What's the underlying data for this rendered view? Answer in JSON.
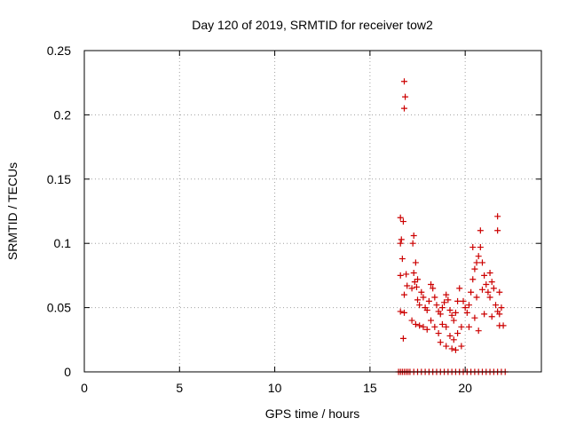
{
  "chart_data": {
    "type": "scatter",
    "title": "Day 120 of 2019, SRMTID for receiver tow2",
    "xlabel": "GPS time / hours",
    "ylabel": "SRMTID / TECUs",
    "xlim": [
      0,
      24
    ],
    "ylim": [
      0,
      0.25
    ],
    "xticks": [
      0,
      5,
      10,
      15,
      20
    ],
    "xtick_labels": [
      "0",
      "5",
      "10",
      "15",
      "20"
    ],
    "yticks": [
      0,
      0.05,
      0.1,
      0.15,
      0.2,
      0.25
    ],
    "ytick_labels": [
      "0",
      "0.05",
      "0.1",
      "0.15",
      "0.2",
      "0.25"
    ],
    "grid": true,
    "marker": "+",
    "series": [
      {
        "name": "SRMTID",
        "color": "#cc0000",
        "points": [
          [
            16.5,
            0
          ],
          [
            16.6,
            0
          ],
          [
            16.7,
            0
          ],
          [
            16.8,
            0
          ],
          [
            16.9,
            0
          ],
          [
            17.0,
            0
          ],
          [
            17.1,
            0
          ],
          [
            17.3,
            0
          ],
          [
            17.5,
            0
          ],
          [
            17.7,
            0
          ],
          [
            17.9,
            0
          ],
          [
            18.1,
            0
          ],
          [
            18.3,
            0
          ],
          [
            18.5,
            0
          ],
          [
            18.7,
            0
          ],
          [
            18.9,
            0
          ],
          [
            19.1,
            0
          ],
          [
            19.3,
            0
          ],
          [
            19.5,
            0
          ],
          [
            19.7,
            0
          ],
          [
            19.9,
            0
          ],
          [
            20.1,
            0
          ],
          [
            20.3,
            0
          ],
          [
            20.5,
            0
          ],
          [
            20.7,
            0
          ],
          [
            20.9,
            0
          ],
          [
            21.1,
            0
          ],
          [
            21.3,
            0
          ],
          [
            21.5,
            0
          ],
          [
            21.7,
            0
          ],
          [
            21.9,
            0
          ],
          [
            22.1,
            0
          ],
          [
            16.8,
            0.226
          ],
          [
            16.85,
            0.214
          ],
          [
            16.8,
            0.205
          ],
          [
            16.6,
            0.12
          ],
          [
            16.75,
            0.117
          ],
          [
            16.65,
            0.103
          ],
          [
            16.6,
            0.1
          ],
          [
            17.3,
            0.106
          ],
          [
            17.25,
            0.1
          ],
          [
            16.7,
            0.088
          ],
          [
            17.4,
            0.085
          ],
          [
            16.9,
            0.076
          ],
          [
            16.6,
            0.075
          ],
          [
            17.3,
            0.077
          ],
          [
            17.5,
            0.072
          ],
          [
            16.95,
            0.067
          ],
          [
            16.8,
            0.06
          ],
          [
            17.2,
            0.065
          ],
          [
            17.35,
            0.07
          ],
          [
            17.45,
            0.066
          ],
          [
            17.5,
            0.056
          ],
          [
            17.6,
            0.052
          ],
          [
            17.7,
            0.062
          ],
          [
            17.8,
            0.058
          ],
          [
            17.9,
            0.05
          ],
          [
            18.0,
            0.048
          ],
          [
            18.1,
            0.055
          ],
          [
            18.2,
            0.068
          ],
          [
            18.3,
            0.065
          ],
          [
            18.4,
            0.058
          ],
          [
            18.5,
            0.052
          ],
          [
            18.6,
            0.047
          ],
          [
            18.7,
            0.045
          ],
          [
            18.8,
            0.05
          ],
          [
            18.9,
            0.054
          ],
          [
            19.0,
            0.06
          ],
          [
            19.1,
            0.056
          ],
          [
            19.2,
            0.048
          ],
          [
            19.3,
            0.044
          ],
          [
            19.4,
            0.04
          ],
          [
            19.5,
            0.046
          ],
          [
            19.6,
            0.055
          ],
          [
            19.7,
            0.065
          ],
          [
            16.6,
            0.047
          ],
          [
            16.8,
            0.046
          ],
          [
            17.2,
            0.04
          ],
          [
            17.4,
            0.037
          ],
          [
            17.6,
            0.036
          ],
          [
            17.8,
            0.035
          ],
          [
            18.0,
            0.033
          ],
          [
            18.2,
            0.04
          ],
          [
            18.4,
            0.035
          ],
          [
            18.6,
            0.03
          ],
          [
            18.8,
            0.037
          ],
          [
            19.0,
            0.035
          ],
          [
            19.2,
            0.028
          ],
          [
            19.4,
            0.025
          ],
          [
            19.6,
            0.03
          ],
          [
            19.8,
            0.035
          ],
          [
            18.7,
            0.023
          ],
          [
            19.0,
            0.02
          ],
          [
            19.3,
            0.018
          ],
          [
            19.5,
            0.017
          ],
          [
            19.8,
            0.02
          ],
          [
            16.75,
            0.026
          ],
          [
            19.9,
            0.055
          ],
          [
            20.0,
            0.05
          ],
          [
            20.1,
            0.046
          ],
          [
            20.2,
            0.052
          ],
          [
            20.3,
            0.062
          ],
          [
            20.4,
            0.072
          ],
          [
            20.5,
            0.08
          ],
          [
            20.6,
            0.085
          ],
          [
            20.7,
            0.09
          ],
          [
            20.8,
            0.097
          ],
          [
            20.9,
            0.085
          ],
          [
            21.0,
            0.075
          ],
          [
            21.1,
            0.068
          ],
          [
            21.2,
            0.062
          ],
          [
            21.3,
            0.058
          ],
          [
            21.4,
            0.07
          ],
          [
            21.5,
            0.065
          ],
          [
            21.6,
            0.052
          ],
          [
            21.7,
            0.047
          ],
          [
            21.8,
            0.045
          ],
          [
            21.9,
            0.05
          ],
          [
            22.0,
            0.036
          ],
          [
            20.4,
            0.097
          ],
          [
            20.8,
            0.11
          ],
          [
            21.7,
            0.121
          ],
          [
            21.7,
            0.11
          ],
          [
            21.3,
            0.077
          ],
          [
            21.8,
            0.062
          ],
          [
            20.2,
            0.035
          ],
          [
            20.5,
            0.042
          ],
          [
            20.7,
            0.032
          ],
          [
            21.0,
            0.045
          ],
          [
            21.4,
            0.043
          ],
          [
            21.8,
            0.036
          ],
          [
            20.9,
            0.064
          ],
          [
            20.6,
            0.058
          ]
        ]
      }
    ]
  }
}
